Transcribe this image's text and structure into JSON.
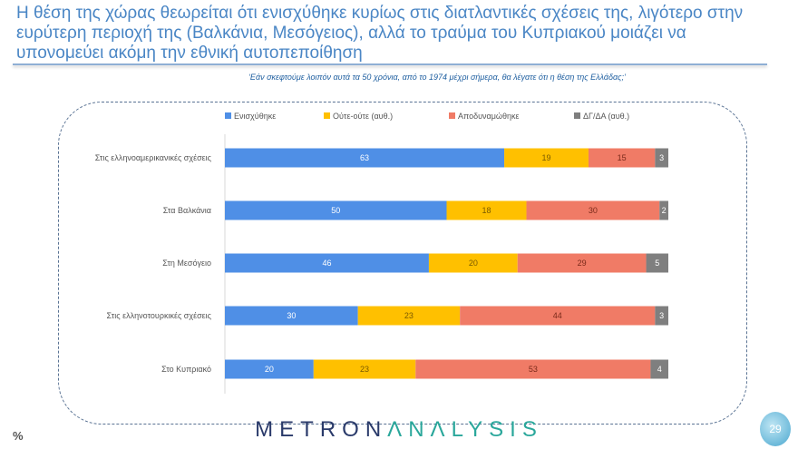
{
  "title": "Η θέση της χώρας θεωρείται ότι ενισχύθηκε κυρίως στις διατλαντικές σχέσεις της, λιγότερο στην ευρύτερη περιοχή της (Βαλκάνια, Μεσόγειος), αλλά το τραύμα του Κυπριακού μοιάζει να υπονομεύει ακόμη την εθνική αυτοπεποίθηση",
  "question": "‘Εάν σκεφτούμε λοιπόν αυτά τα 50 χρόνια, από το 1974 μέχρι σήμερα, θα λέγατε ότι η θέση της Ελλάδας;’",
  "unit_label": "%",
  "logo": {
    "part1": "METRON",
    "part2": "ΛNΛLYSIS"
  },
  "page_number": "29",
  "chart_data": {
    "type": "bar",
    "orientation": "horizontal",
    "stacked": true,
    "legend_position": "top",
    "categories": [
      "Στις ελληνοαμερικανικές σχέσεις",
      "Στα Βαλκάνια",
      "Στη Μεσόγειο",
      "Στις ελληνοτουρκικές σχέσεις",
      "Στο Κυπριακό"
    ],
    "series": [
      {
        "name": "Ενισχύθηκε",
        "color": "#4f8fe6",
        "label_color": "#ffffff",
        "values": [
          63,
          50,
          46,
          30,
          20
        ]
      },
      {
        "name": "Ούτε-ούτε (αυθ.)",
        "color": "#ffc000",
        "label_color": "#7a5a00",
        "values": [
          19,
          18,
          20,
          23,
          23
        ]
      },
      {
        "name": "Αποδυναμώθηκε",
        "color": "#f07b66",
        "label_color": "#7a2a1a",
        "values": [
          15,
          30,
          29,
          44,
          53
        ]
      },
      {
        "name": "ΔΓ/ΔΑ (αυθ.)",
        "color": "#7f7f7f",
        "label_color": "#ffffff",
        "values": [
          3,
          2,
          5,
          3,
          4
        ]
      }
    ]
  }
}
